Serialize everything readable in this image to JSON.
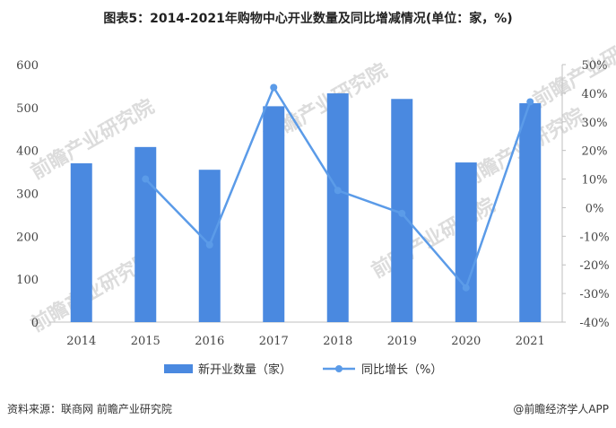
{
  "title": "图表5：2014-2021年购物中心开业数量及同比增减情况(单位：家，%)",
  "source": "资料来源：联商网 前瞻产业研究院",
  "brand": "@前瞻经济学人APP",
  "watermark": "前瞻产业研究院",
  "colors": {
    "bar": "#4a89e0",
    "line": "#5b9be8",
    "axis": "#bfbfbf",
    "grid": "#e6e6e6"
  },
  "chart_data": {
    "type": "bar",
    "categories": [
      "2014",
      "2015",
      "2016",
      "2017",
      "2018",
      "2019",
      "2020",
      "2021"
    ],
    "series": [
      {
        "name": "新开业数量（家）",
        "type": "bar",
        "axis": "left",
        "values": [
          370,
          408,
          355,
          503,
          533,
          520,
          372,
          510
        ]
      },
      {
        "name": "同比增长（%）",
        "type": "line",
        "axis": "right",
        "values": [
          null,
          10,
          -13,
          42,
          6,
          -2,
          -28,
          37
        ]
      }
    ],
    "y_left": {
      "min": 0,
      "max": 600,
      "ticks": [
        "0",
        "100",
        "200",
        "300",
        "400",
        "500",
        "600"
      ]
    },
    "y_right": {
      "min": -40,
      "max": 50,
      "ticks": [
        "-40%",
        "-30%",
        "-20%",
        "-10%",
        "0%",
        "10%",
        "20%",
        "30%",
        "40%",
        "50%"
      ]
    },
    "legend_position": "bottom-center",
    "grid": false
  }
}
